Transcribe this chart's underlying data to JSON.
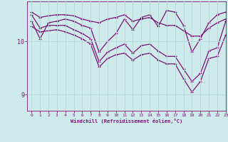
{
  "xlabel": "Windchill (Refroidissement éolien,°C)",
  "xlim": [
    -0.5,
    23
  ],
  "ylim": [
    8.7,
    10.75
  ],
  "yticks": [
    9,
    10
  ],
  "xticks": [
    0,
    1,
    2,
    3,
    4,
    5,
    6,
    7,
    8,
    9,
    10,
    11,
    12,
    13,
    14,
    15,
    16,
    17,
    18,
    19,
    20,
    21,
    22,
    23
  ],
  "bg_color": "#ceeaea",
  "line_color": "#7b1278",
  "grid_color": "#b8dada",
  "lines": [
    [
      10.55,
      10.45,
      10.48,
      10.5,
      10.5,
      10.48,
      10.42,
      10.38,
      10.35,
      10.42,
      10.45,
      10.5,
      10.38,
      10.42,
      10.45,
      10.35,
      10.3,
      10.3,
      10.2,
      10.1,
      10.1,
      10.25,
      10.35,
      10.42
    ],
    [
      10.38,
      10.05,
      10.35,
      10.38,
      10.42,
      10.38,
      10.3,
      10.25,
      9.8,
      10.0,
      10.15,
      10.42,
      10.22,
      10.45,
      10.5,
      10.28,
      10.58,
      10.55,
      10.3,
      9.8,
      10.05,
      10.35,
      10.5,
      10.55
    ],
    [
      10.5,
      10.25,
      10.3,
      10.3,
      10.3,
      10.22,
      10.15,
      10.05,
      9.62,
      9.8,
      9.88,
      9.95,
      9.78,
      9.92,
      9.95,
      9.82,
      9.72,
      9.72,
      9.48,
      9.25,
      9.4,
      9.82,
      9.88,
      10.38
    ],
    [
      10.28,
      10.18,
      10.2,
      10.22,
      10.18,
      10.12,
      10.05,
      9.95,
      9.52,
      9.68,
      9.75,
      9.78,
      9.65,
      9.75,
      9.78,
      9.65,
      9.58,
      9.58,
      9.3,
      9.05,
      9.25,
      9.68,
      9.72,
      10.12
    ]
  ]
}
